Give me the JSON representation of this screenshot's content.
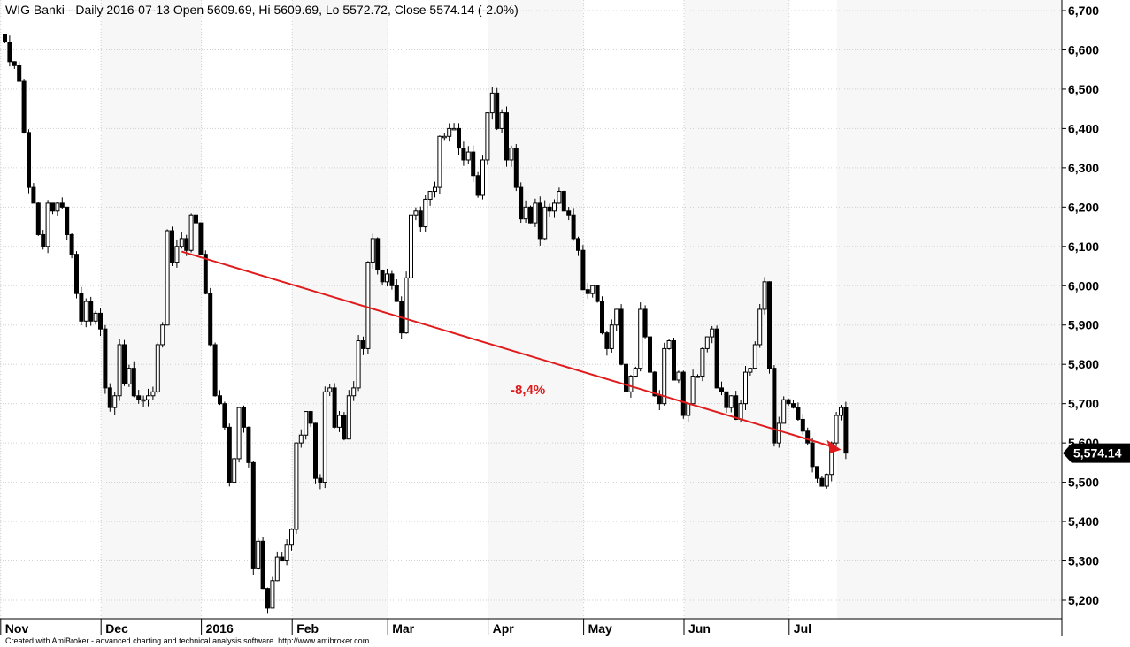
{
  "chart_data": {
    "type": "candlestick",
    "title": "WIG Banki - Daily 2016-07-13 Open 5609.69, Hi 5609.69, Lo 5572.72, Close 5574.14 (-2.0%)",
    "ylim": [
      5160,
      6720
    ],
    "y_ticks": [
      "5,200",
      "5,300",
      "5,400",
      "5,500",
      "5,600",
      "5,700",
      "5,800",
      "5,900",
      "6,000",
      "6,100",
      "6,200",
      "6,300",
      "6,400",
      "6,500",
      "6,600",
      "6,700"
    ],
    "y_tick_values": [
      5200,
      5300,
      5400,
      5500,
      5600,
      5700,
      5800,
      5900,
      6000,
      6100,
      6200,
      6300,
      6400,
      6500,
      6600,
      6700
    ],
    "x_labels": [
      {
        "label": "Nov",
        "bar": 0
      },
      {
        "label": "Dec",
        "bar": 21
      },
      {
        "label": "2016",
        "bar": 42
      },
      {
        "label": "Feb",
        "bar": 61
      },
      {
        "label": "Mar",
        "bar": 81
      },
      {
        "label": "Apr",
        "bar": 102
      },
      {
        "label": "May",
        "bar": 122
      },
      {
        "label": "Jun",
        "bar": 143
      },
      {
        "label": "Jul",
        "bar": 165
      }
    ],
    "shaded_months": [
      [
        0,
        21
      ],
      [
        42,
        61
      ],
      [
        81,
        102
      ],
      [
        122,
        143
      ],
      [
        165,
        175
      ]
    ],
    "grid": true,
    "closes": [
      6620,
      6570,
      6560,
      6520,
      6390,
      6250,
      6210,
      6130,
      6100,
      6210,
      6190,
      6210,
      6200,
      6130,
      6080,
      5980,
      5910,
      5960,
      5910,
      5930,
      5890,
      5740,
      5690,
      5720,
      5850,
      5750,
      5790,
      5720,
      5710,
      5710,
      5720,
      5730,
      5850,
      5900,
      6140,
      6060,
      6100,
      6120,
      6090,
      6180,
      6160,
      6080,
      5980,
      5850,
      5720,
      5700,
      5640,
      5500,
      5560,
      5690,
      5640,
      5550,
      5280,
      5350,
      5230,
      5180,
      5250,
      5310,
      5300,
      5340,
      5380,
      5600,
      5620,
      5680,
      5650,
      5510,
      5500,
      5730,
      5740,
      5640,
      5670,
      5610,
      5720,
      5740,
      5860,
      5840,
      6060,
      6120,
      6040,
      6010,
      6030,
      6000,
      5960,
      5880,
      6020,
      6180,
      6190,
      6150,
      6220,
      6240,
      6250,
      6380,
      6380,
      6400,
      6400,
      6350,
      6320,
      6340,
      6280,
      6230,
      6320,
      6440,
      6490,
      6400,
      6440,
      6320,
      6350,
      6250,
      6170,
      6200,
      6160,
      6210,
      6120,
      6200,
      6190,
      6210,
      6240,
      6190,
      6180,
      6120,
      6090,
      5990,
      5980,
      6000,
      5960,
      5880,
      5840,
      5900,
      5940,
      5800,
      5730,
      5770,
      5790,
      5940,
      5870,
      5780,
      5720,
      5700,
      5840,
      5860,
      5760,
      5780,
      5670,
      5700,
      5770,
      5770,
      5840,
      5870,
      5890,
      5740,
      5730,
      5690,
      5720,
      5660,
      5700,
      5780,
      5790,
      5850,
      5940,
      6010,
      5790,
      5600,
      5650,
      5710,
      5700,
      5690,
      5660,
      5630,
      5600,
      5540,
      5510,
      5490,
      5520,
      5600,
      5670,
      5690,
      5574.14
    ],
    "trendline": {
      "from_bar": 37,
      "from_value": 6087,
      "to_bar": 175,
      "to_value": 5583,
      "label": "-8,4%"
    },
    "last_value_label": "5,574.14"
  },
  "footer_text": "Created with AmiBroker - advanced charting and technical analysis software. http://www.amibroker.com",
  "colors": {
    "plot_background": "#f7f7f7",
    "month_band": "#ffffff",
    "grid": "#d0d0d0",
    "candle": "#000000",
    "trendline": "#e01b1b",
    "annotation": "#e01b1b",
    "last_value_badge": "#000000"
  }
}
